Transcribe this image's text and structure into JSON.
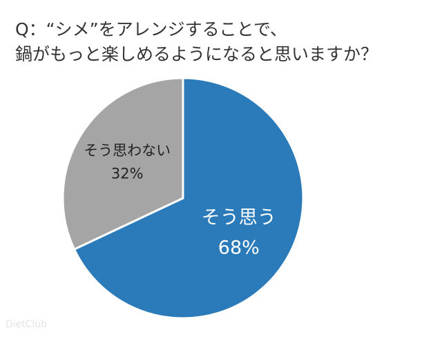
{
  "chart_data": {
    "type": "pie",
    "title": [
      "Q：“シメ”をアレンジすることで、",
      "鍋がもっと楽しめるようになると思いますか？"
    ],
    "categories": [
      "そう思う",
      "そう思わない"
    ],
    "values": [
      68,
      32
    ],
    "value_labels": [
      "68%",
      "32%"
    ],
    "colors": [
      "#2b7bba",
      "#a5a5a5"
    ],
    "label_colors": [
      "#ffffff",
      "#222222"
    ],
    "watermark": "DietClub"
  }
}
